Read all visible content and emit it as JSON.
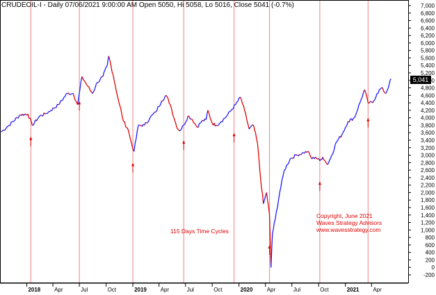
{
  "header": {
    "text": "CRUDEOIL-I - Daily 07/06/2021 9:00:00 AM Open 5050, Hi 5058, Lo 5016, Close 5041 (-0.7%)"
  },
  "annotations": {
    "cycles_label": "115 Days Time Cycles",
    "copyright_line1": "Copyright, June 2021",
    "copyright_line2": "Waves Strategy Advisors",
    "copyright_line3": "www.wavesstrategy.com"
  },
  "last_price_label": "5,041",
  "colors": {
    "up": "#1a1aff",
    "down": "#e00000",
    "cycle_line": "#f08080",
    "text_red": "#e00000"
  },
  "chart_data": {
    "type": "line",
    "title": "CRUDEOIL-I - Daily 07/06/2021 9:00:00 AM Open 5050, Hi 5058, Lo 5016, Close 5041 (-0.7%)",
    "xlabel": "",
    "ylabel": "",
    "ylim": [
      -200,
      7000
    ],
    "y_ticks": [
      -200,
      0,
      200,
      400,
      600,
      800,
      1000,
      1200,
      1400,
      1600,
      1800,
      2000,
      2200,
      2400,
      2600,
      2800,
      3000,
      3200,
      3400,
      3600,
      3800,
      4000,
      4200,
      4400,
      4600,
      4800,
      5000,
      5200,
      5400,
      5600,
      5800,
      6000,
      6200,
      6400,
      6600,
      6800,
      7000
    ],
    "y_tick_labels": [
      "-200",
      "0",
      "200",
      "400",
      "600",
      "800",
      "1,000",
      "1,200",
      "1,400",
      "1,600",
      "1,800",
      "2,000",
      "2,200",
      "2,400",
      "2,600",
      "2,800",
      "3,000",
      "3,200",
      "3,400",
      "3,600",
      "3,800",
      "4,000",
      "4,200",
      "4,400",
      "4,600",
      "4,800",
      "5,000",
      "5,200",
      "5,400",
      "5,600",
      "5,800",
      "6,000",
      "6,200",
      "6,400",
      "6,600",
      "6,800",
      "7,000"
    ],
    "x_ticks": [
      {
        "date": "2018-01-01",
        "label": "2018",
        "bold": true
      },
      {
        "date": "2018-04-01",
        "label": "Apr"
      },
      {
        "date": "2018-07-01",
        "label": "Jul"
      },
      {
        "date": "2018-10-01",
        "label": "Oct"
      },
      {
        "date": "2019-01-01",
        "label": "2019",
        "bold": true
      },
      {
        "date": "2019-04-01",
        "label": "Apr"
      },
      {
        "date": "2019-07-01",
        "label": "Jul"
      },
      {
        "date": "2019-10-01",
        "label": "Oct"
      },
      {
        "date": "2020-01-01",
        "label": "2020",
        "bold": true
      },
      {
        "date": "2020-04-01",
        "label": "Apr"
      },
      {
        "date": "2020-07-01",
        "label": "Jul"
      },
      {
        "date": "2020-10-01",
        "label": "Oct"
      },
      {
        "date": "2021-01-01",
        "label": "2021",
        "bold": true
      },
      {
        "date": "2021-04-01",
        "label": "Apr"
      }
    ],
    "cycle_lines": [
      "2018-01-15",
      "2018-07-01",
      "2019-01-01",
      "2019-06-25",
      "2019-12-15",
      "2020-04-15",
      "2020-10-05",
      "2021-03-20"
    ],
    "arrows": [
      {
        "date": "2018-01-15",
        "value": 3500
      },
      {
        "date": "2018-07-01",
        "value": 4450
      },
      {
        "date": "2019-01-01",
        "value": 2800
      },
      {
        "date": "2019-06-25",
        "value": 3400
      },
      {
        "date": "2019-12-15",
        "value": 3600
      },
      {
        "date": "2020-04-15",
        "value": 600
      },
      {
        "date": "2020-10-05",
        "value": 2300
      },
      {
        "date": "2021-03-20",
        "value": 4000
      }
    ],
    "series": [
      {
        "values": [
          [
            "2017-10-05",
            3620
          ],
          [
            "2017-11-01",
            3800
          ],
          [
            "2017-12-10",
            4080
          ],
          [
            "2018-01-05",
            4100
          ],
          [
            "2018-01-20",
            3800
          ],
          [
            "2018-02-15",
            4050
          ],
          [
            "2018-03-05",
            4100
          ],
          [
            "2018-03-25",
            4200
          ],
          [
            "2018-04-20",
            4350
          ],
          [
            "2018-05-20",
            4650
          ],
          [
            "2018-06-10",
            4650
          ],
          [
            "2018-06-25",
            4350
          ],
          [
            "2018-07-10",
            5100
          ],
          [
            "2018-07-25",
            4900
          ],
          [
            "2018-08-15",
            4650
          ],
          [
            "2018-09-01",
            4950
          ],
          [
            "2018-09-20",
            5100
          ],
          [
            "2018-10-05",
            5400
          ],
          [
            "2018-10-10",
            5650
          ],
          [
            "2018-10-25",
            5150
          ],
          [
            "2018-11-10",
            4550
          ],
          [
            "2018-11-30",
            3900
          ],
          [
            "2018-12-15",
            3700
          ],
          [
            "2018-12-28",
            3300
          ],
          [
            "2019-01-05",
            3100
          ],
          [
            "2019-01-20",
            3800
          ],
          [
            "2019-02-10",
            3800
          ],
          [
            "2019-03-01",
            4000
          ],
          [
            "2019-03-20",
            4150
          ],
          [
            "2019-04-10",
            4450
          ],
          [
            "2019-04-25",
            4600
          ],
          [
            "2019-05-10",
            4350
          ],
          [
            "2019-05-30",
            3800
          ],
          [
            "2019-06-10",
            3650
          ],
          [
            "2019-06-25",
            3800
          ],
          [
            "2019-07-10",
            4050
          ],
          [
            "2019-07-25",
            3950
          ],
          [
            "2019-08-10",
            3750
          ],
          [
            "2019-08-25",
            3900
          ],
          [
            "2019-09-10",
            3950
          ],
          [
            "2019-09-16",
            4200
          ],
          [
            "2019-10-01",
            3850
          ],
          [
            "2019-10-15",
            3800
          ],
          [
            "2019-11-01",
            3900
          ],
          [
            "2019-11-20",
            4050
          ],
          [
            "2019-12-05",
            4200
          ],
          [
            "2019-12-20",
            4350
          ],
          [
            "2020-01-06",
            4550
          ],
          [
            "2020-01-20",
            4200
          ],
          [
            "2020-02-05",
            3700
          ],
          [
            "2020-02-20",
            3800
          ],
          [
            "2020-03-05",
            3300
          ],
          [
            "2020-03-15",
            2400
          ],
          [
            "2020-03-25",
            1700
          ],
          [
            "2020-04-05",
            2000
          ],
          [
            "2020-04-15",
            1400
          ],
          [
            "2020-04-20",
            0
          ],
          [
            "2020-04-25",
            900
          ],
          [
            "2020-05-05",
            1300
          ],
          [
            "2020-05-20",
            2000
          ],
          [
            "2020-06-05",
            2600
          ],
          [
            "2020-06-25",
            2900
          ],
          [
            "2020-07-15",
            3000
          ],
          [
            "2020-08-05",
            3050
          ],
          [
            "2020-08-25",
            3100
          ],
          [
            "2020-09-08",
            2900
          ],
          [
            "2020-09-20",
            2950
          ],
          [
            "2020-10-05",
            2850
          ],
          [
            "2020-10-15",
            2950
          ],
          [
            "2020-11-01",
            2750
          ],
          [
            "2020-11-15",
            3000
          ],
          [
            "2020-12-01",
            3350
          ],
          [
            "2020-12-20",
            3550
          ],
          [
            "2021-01-10",
            3900
          ],
          [
            "2021-02-01",
            4000
          ],
          [
            "2021-02-20",
            4400
          ],
          [
            "2021-03-08",
            4750
          ],
          [
            "2021-03-20",
            4400
          ],
          [
            "2021-04-05",
            4400
          ],
          [
            "2021-04-20",
            4650
          ],
          [
            "2021-05-05",
            4800
          ],
          [
            "2021-05-20",
            4650
          ],
          [
            "2021-06-01",
            4900
          ],
          [
            "2021-06-07",
            5041
          ]
        ]
      }
    ]
  }
}
